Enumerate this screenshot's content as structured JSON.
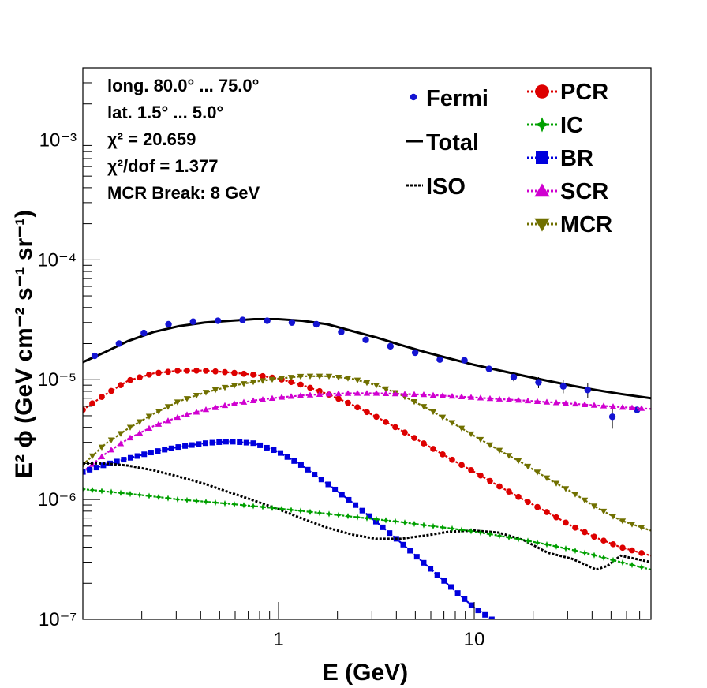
{
  "chart_data": {
    "type": "line",
    "title": "",
    "xlabel": "E (GeV)",
    "ylabel": "E² ϕ (GeV cm⁻² s⁻¹ sr⁻¹)",
    "xscale": "log",
    "yscale": "log",
    "xlim": [
      0.1,
      80
    ],
    "ylim": [
      1e-07,
      0.004
    ],
    "x_tick_labels": [
      "1",
      "10"
    ],
    "y_tick_labels": [
      "10⁻⁷",
      "10⁻⁶",
      "10⁻⁵",
      "10⁻⁴",
      "10⁻³"
    ],
    "grid": false,
    "info_box": [
      "long. 80.0° ... 75.0°",
      "lat. 1.5° ... 5.0°",
      "χ² = 20.659",
      "χ²/dof = 1.377",
      "MCR Break:  8 GeV"
    ],
    "legend_placement": "top-right",
    "legend": [
      {
        "label": "Fermi",
        "style": "points",
        "color": "#1414d2"
      },
      {
        "label": "Total",
        "style": "solid",
        "color": "#000000"
      },
      {
        "label": "ISO",
        "style": "dotted",
        "color": "#000000"
      },
      {
        "label": "PCR",
        "style": "circle",
        "color": "#dd0000"
      },
      {
        "label": "IC",
        "style": "star",
        "color": "#00a000"
      },
      {
        "label": "BR",
        "style": "square",
        "color": "#0000dd"
      },
      {
        "label": "SCR",
        "style": "triangle-up",
        "color": "#d000d0"
      },
      {
        "label": "MCR",
        "style": "triangle-down",
        "color": "#707000"
      }
    ],
    "series": [
      {
        "name": "Total",
        "color": "#000000",
        "x": [
          0.1,
          0.13,
          0.17,
          0.23,
          0.31,
          0.42,
          0.56,
          0.75,
          1.0,
          1.33,
          1.78,
          2.37,
          3.16,
          4.2,
          5.6,
          7.5,
          10,
          13.3,
          17.8,
          23.7,
          31.6,
          42,
          56,
          80
        ],
        "y": [
          1.4e-05,
          1.7e-05,
          2.1e-05,
          2.5e-05,
          2.8e-05,
          3e-05,
          3.1e-05,
          3.2e-05,
          3.2e-05,
          3.1e-05,
          2.9e-05,
          2.55e-05,
          2.25e-05,
          1.95e-05,
          1.7e-05,
          1.5e-05,
          1.33e-05,
          1.2e-05,
          1.08e-05,
          9.8e-06,
          8.9e-06,
          8.2e-06,
          7.6e-06,
          7e-06
        ]
      },
      {
        "name": "Fermi",
        "color": "#1414d2",
        "x": [
          0.115,
          0.153,
          0.205,
          0.274,
          0.366,
          0.49,
          0.655,
          0.875,
          1.17,
          1.56,
          2.09,
          2.79,
          3.73,
          4.99,
          6.67,
          8.91,
          11.9,
          15.9,
          21.3,
          28.5,
          38.0,
          50.8,
          67.9
        ],
        "y": [
          1.58e-05,
          2e-05,
          2.45e-05,
          2.9e-05,
          3.05e-05,
          3.1e-05,
          3.15e-05,
          3.1e-05,
          3e-05,
          2.9e-05,
          2.5e-05,
          2.15e-05,
          1.9e-05,
          1.68e-05,
          1.47e-05,
          1.45e-05,
          1.23e-05,
          1.05e-05,
          9.5e-06,
          8.8e-06,
          8.2e-06,
          4.9e-06,
          5.6e-06
        ],
        "y_err": [
          0,
          0,
          0,
          0,
          0,
          0,
          0,
          0,
          0,
          0,
          0,
          0,
          0,
          0,
          0,
          4e-07,
          6e-07,
          8e-07,
          1e-06,
          1.1e-06,
          1.2e-06,
          1e-06,
          0
        ]
      },
      {
        "name": "PCR",
        "color": "#dd0000",
        "x": [
          0.1,
          0.13,
          0.17,
          0.23,
          0.31,
          0.42,
          0.56,
          0.75,
          1.0,
          1.33,
          1.78,
          2.37,
          3.16,
          4.2,
          5.6,
          7.5,
          10,
          13.3,
          17.8,
          23.7,
          31.6,
          42,
          56,
          80
        ],
        "y": [
          5.6e-06,
          7.5e-06,
          9.8e-06,
          1.13e-05,
          1.19e-05,
          1.19e-05,
          1.15e-05,
          1.1e-05,
          1.02e-05,
          9e-06,
          7.6e-06,
          6.2e-06,
          4.9e-06,
          3.8e-06,
          2.9e-06,
          2.2e-06,
          1.7e-06,
          1.3e-06,
          1e-06,
          7.8e-07,
          6e-07,
          4.8e-07,
          4e-07,
          3.4e-07
        ]
      },
      {
        "name": "MCR",
        "color": "#707000",
        "x": [
          0.1,
          0.13,
          0.17,
          0.23,
          0.31,
          0.42,
          0.56,
          0.75,
          1.0,
          1.33,
          1.78,
          2.37,
          3.16,
          4.2,
          5.6,
          7.5,
          10,
          13.3,
          17.8,
          23.7,
          31.6,
          42,
          56,
          80
        ],
        "y": [
          1.95e-06,
          2.9e-06,
          3.9e-06,
          5.2e-06,
          6.6e-06,
          7.8e-06,
          8.8e-06,
          9.6e-06,
          1.02e-05,
          1.07e-05,
          1.07e-05,
          1.02e-05,
          9e-06,
          7.5e-06,
          5.9e-06,
          4.5e-06,
          3.4e-06,
          2.6e-06,
          2e-06,
          1.5e-06,
          1.15e-06,
          8.6e-07,
          6.7e-07,
          5.5e-07
        ]
      },
      {
        "name": "SCR",
        "color": "#d000d0",
        "x": [
          0.1,
          0.13,
          0.17,
          0.23,
          0.31,
          0.42,
          0.56,
          0.75,
          1.0,
          1.33,
          1.78,
          2.37,
          3.16,
          4.2,
          5.6,
          7.5,
          10,
          13.3,
          17.8,
          23.7,
          31.6,
          42,
          56,
          80
        ],
        "y": [
          1.7e-06,
          2.4e-06,
          3.2e-06,
          4.1e-06,
          4.9e-06,
          5.6e-06,
          6.2e-06,
          6.7e-06,
          7.1e-06,
          7.4e-06,
          7.6e-06,
          7.7e-06,
          7.7e-06,
          7.6e-06,
          7.5e-06,
          7.3e-06,
          7.1e-06,
          6.9e-06,
          6.7e-06,
          6.5e-06,
          6.3e-06,
          6.1e-06,
          5.9e-06,
          5.7e-06
        ]
      },
      {
        "name": "BR",
        "color": "#0000dd",
        "x": [
          0.1,
          0.13,
          0.17,
          0.23,
          0.31,
          0.42,
          0.56,
          0.75,
          1.0,
          1.33,
          1.78,
          2.37,
          3.16,
          4.2,
          5.6,
          7.5,
          10,
          12.3
        ],
        "y": [
          1.7e-06,
          1.95e-06,
          2.2e-06,
          2.5e-06,
          2.75e-06,
          2.95e-06,
          3.05e-06,
          2.95e-06,
          2.5e-06,
          1.9e-06,
          1.35e-06,
          9.5e-07,
          6.5e-07,
          4.4e-07,
          2.9e-07,
          1.9e-07,
          1.25e-07,
          1e-07
        ]
      },
      {
        "name": "ISO",
        "color": "#000000",
        "x": [
          0.1,
          0.13,
          0.17,
          0.23,
          0.31,
          0.42,
          0.56,
          0.75,
          1.0,
          1.33,
          1.78,
          2.37,
          3.16,
          4.2,
          5.6,
          7.5,
          10,
          13.3,
          17.8,
          23.7,
          31.6,
          42,
          48,
          56,
          80
        ],
        "y": [
          2e-06,
          2e-06,
          1.92e-06,
          1.75e-06,
          1.55e-06,
          1.35e-06,
          1.15e-06,
          9.8e-07,
          8.3e-07,
          6.9e-07,
          5.8e-07,
          5.1e-07,
          4.7e-07,
          4.7e-07,
          5e-07,
          5.4e-07,
          5.5e-07,
          5.3e-07,
          4.6e-07,
          3.6e-07,
          3.2e-07,
          2.6e-07,
          2.8e-07,
          3.4e-07,
          3e-07
        ]
      },
      {
        "name": "IC",
        "color": "#00a000",
        "x": [
          0.1,
          0.13,
          0.17,
          0.23,
          0.31,
          0.42,
          0.56,
          0.75,
          1.0,
          1.33,
          1.78,
          2.37,
          3.16,
          4.2,
          5.6,
          7.5,
          10,
          13.3,
          17.8,
          23.7,
          31.6,
          42,
          56,
          80
        ],
        "y": [
          1.22e-06,
          1.17e-06,
          1.12e-06,
          1.06e-06,
          1e-06,
          9.6e-07,
          9.2e-07,
          8.8e-07,
          8.4e-07,
          8e-07,
          7.6e-07,
          7.2e-07,
          6.85e-07,
          6.5e-07,
          6.1e-07,
          5.75e-07,
          5.4e-07,
          5e-07,
          4.6e-07,
          4.2e-07,
          3.8e-07,
          3.4e-07,
          3e-07,
          2.6e-07
        ]
      }
    ]
  }
}
